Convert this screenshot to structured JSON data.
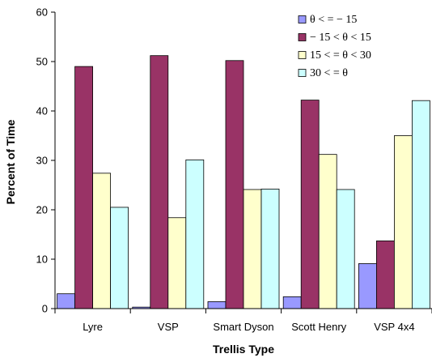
{
  "chart_data": {
    "type": "bar",
    "xlabel": "Trellis Type",
    "ylabel": "Percent of Time",
    "ylim": [
      0,
      60
    ],
    "yticks": [
      0,
      10,
      20,
      30,
      40,
      50,
      60
    ],
    "grid": false,
    "legend_position": "top-right",
    "categories": [
      "Lyre",
      "VSP",
      "Smart Dyson",
      "Scott Henry",
      "VSP 4x4"
    ],
    "series": [
      {
        "name": "θ < = − 15",
        "color": "#9999ff",
        "values": [
          3.0,
          0.3,
          1.4,
          2.4,
          9.1
        ]
      },
      {
        "name": "− 15 < θ < 15",
        "color": "#993366",
        "values": [
          49.0,
          51.2,
          50.2,
          42.2,
          13.7
        ]
      },
      {
        "name": "15 < = θ < 30",
        "color": "#ffffcc",
        "values": [
          27.4,
          18.4,
          24.1,
          31.2,
          35.0
        ]
      },
      {
        "name": "30 < = θ",
        "color": "#ccffff",
        "values": [
          20.5,
          30.1,
          24.2,
          24.1,
          42.1
        ]
      }
    ]
  }
}
